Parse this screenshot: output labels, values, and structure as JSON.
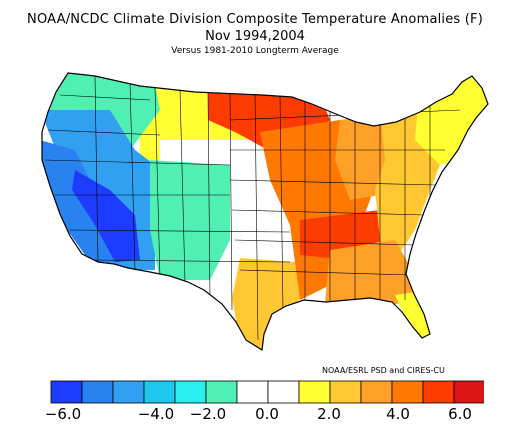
{
  "title": {
    "line1": "NOAA/NCDC Climate Division Composite Temperature Anomalies (F)",
    "line2": "Nov  1994,2004",
    "line3": "Versus 1981-2010 Longterm Average"
  },
  "credit": "NOAA/ESRL PSD and CIRES-CU",
  "colorbar": {
    "colors": [
      "#1e3cff",
      "#2882f0",
      "#32a0f0",
      "#1ec8f0",
      "#28f0f0",
      "#50f0b4",
      "#ffffff",
      "#ffffff",
      "#ffff32",
      "#ffc832",
      "#ffa028",
      "#ff7800",
      "#ff3c00",
      "#dc1414"
    ],
    "tick_labels": [
      {
        "value": -6.0,
        "text": "−6.0"
      },
      {
        "value": -4.0,
        "text": "−4.0"
      },
      {
        "value": -2.0,
        "text": "−2.0"
      },
      {
        "value": 0.0,
        "text": "0.0"
      },
      {
        "value": 2.0,
        "text": "2.0"
      },
      {
        "value": 4.0,
        "text": "4.0"
      },
      {
        "value": 6.0,
        "text": "6.0"
      }
    ]
  },
  "regions": [
    {
      "name": "pacific-northwest",
      "color": "#50f0b4"
    },
    {
      "name": "northern-rockies",
      "color": "#50f0b4"
    },
    {
      "name": "california-coast",
      "color": "#2882f0"
    },
    {
      "name": "great-basin",
      "color": "#32a0f0"
    },
    {
      "name": "southwest-desert",
      "color": "#1e3cff"
    },
    {
      "name": "southern-rockies",
      "color": "#50f0b4"
    },
    {
      "name": "northern-plains",
      "color": "#ffff32"
    },
    {
      "name": "upper-midwest",
      "color": "#ff3c00"
    },
    {
      "name": "central-plains",
      "color": "#ffffff"
    },
    {
      "name": "southern-plains",
      "color": "#ffffff"
    },
    {
      "name": "texas-east",
      "color": "#ffc832"
    },
    {
      "name": "mississippi-valley",
      "color": "#ff7800"
    },
    {
      "name": "tennessee-valley",
      "color": "#ff3c00"
    },
    {
      "name": "southeast",
      "color": "#ffa028"
    },
    {
      "name": "ohio-valley",
      "color": "#ffa028"
    },
    {
      "name": "northeast",
      "color": "#ffc832"
    },
    {
      "name": "new-england",
      "color": "#ffff32"
    },
    {
      "name": "florida",
      "color": "#ffff32"
    }
  ]
}
